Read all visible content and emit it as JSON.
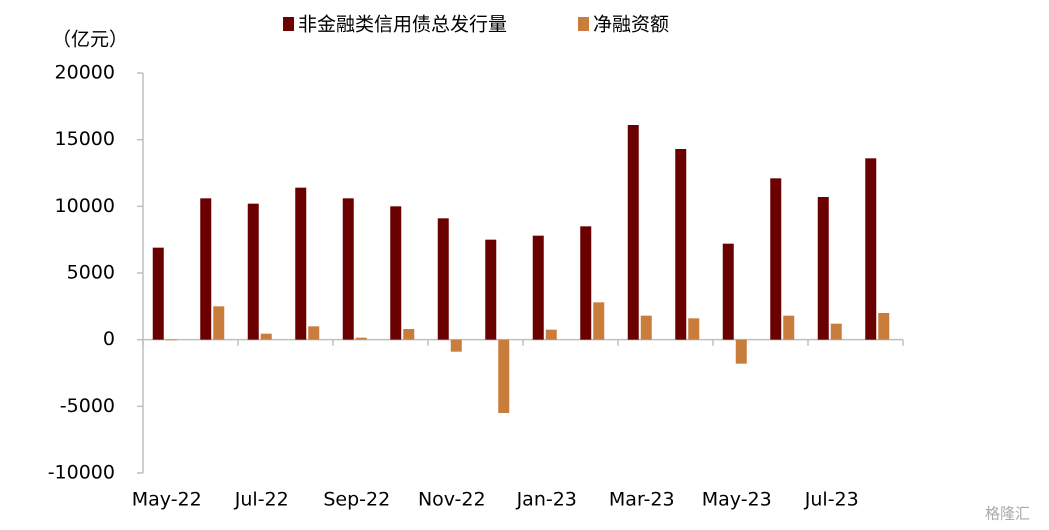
{
  "chart_data": {
    "type": "bar",
    "y_axis_label": "（亿元）",
    "categories": [
      "May-22",
      null,
      "Jul-22",
      null,
      "Sep-22",
      null,
      "Nov-22",
      null,
      "Jan-23",
      null,
      "Mar-23",
      null,
      "May-23",
      null,
      "Jul-23",
      null
    ],
    "series": [
      {
        "name": "非金融类信用债总发行量",
        "color": "#6b0000",
        "values": [
          6900,
          10600,
          10200,
          11400,
          10600,
          10000,
          9100,
          7500,
          7800,
          8500,
          16100,
          14300,
          7200,
          12100,
          10700,
          13600
        ]
      },
      {
        "name": "净融资额",
        "color": "#c97d3c",
        "values": [
          -50,
          2500,
          450,
          1000,
          150,
          800,
          -900,
          -5500,
          750,
          2800,
          1800,
          1600,
          -1800,
          1800,
          1200,
          2000
        ]
      }
    ],
    "ylim": [
      -10000,
      20000
    ],
    "yticks": [
      -10000,
      -5000,
      0,
      5000,
      10000,
      15000,
      20000
    ],
    "legend": "top",
    "watermark": "格隆汇"
  }
}
